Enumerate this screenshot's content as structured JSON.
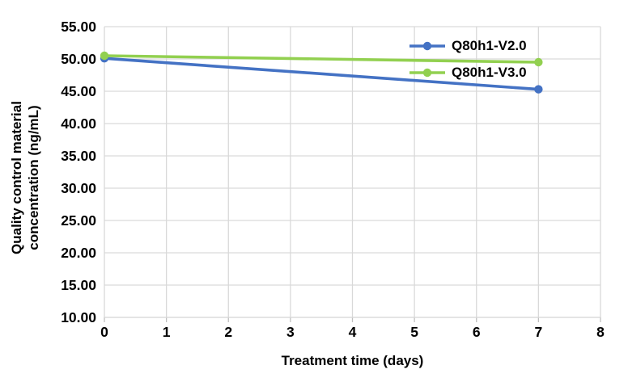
{
  "chart_data": {
    "type": "line",
    "title": "",
    "xlabel": "Treatment time (days)",
    "ylabel": "Quality control material concentration (ng/mL)",
    "ylabel_lines": [
      "Quality control material",
      "concentration (ng/mL)"
    ],
    "x": [
      0,
      7
    ],
    "series": [
      {
        "name": "Q80h1-V2.0",
        "color": "#4472C4",
        "values": [
          50.1,
          45.3
        ]
      },
      {
        "name": "Q80h1-V3.0",
        "color": "#92D050",
        "values": [
          50.5,
          49.5
        ]
      }
    ],
    "xlim": [
      0,
      8
    ],
    "ylim": [
      10,
      55
    ],
    "x_ticks": [
      {
        "value": 0,
        "label": "0"
      },
      {
        "value": 1,
        "label": "1"
      },
      {
        "value": 2,
        "label": "2"
      },
      {
        "value": 3,
        "label": "3"
      },
      {
        "value": 4,
        "label": "4"
      },
      {
        "value": 5,
        "label": "5"
      },
      {
        "value": 6,
        "label": "6"
      },
      {
        "value": 7,
        "label": "7"
      },
      {
        "value": 8,
        "label": "8"
      }
    ],
    "y_ticks": [
      {
        "value": 55,
        "label": "55.00"
      },
      {
        "value": 50,
        "label": "50.00"
      },
      {
        "value": 45,
        "label": "45.00"
      },
      {
        "value": 40,
        "label": "40.00"
      },
      {
        "value": 35,
        "label": "35.00"
      },
      {
        "value": 30,
        "label": "30.00"
      },
      {
        "value": 25,
        "label": "25.00"
      },
      {
        "value": 20,
        "label": "20.00"
      },
      {
        "value": 15,
        "label": "15.00"
      },
      {
        "value": 10,
        "label": "10.00"
      }
    ],
    "grid": true,
    "legend_position": "inside-top-right",
    "colors": {
      "gridline": "#D9D9D9",
      "axis_line": "#D9D9D9",
      "tick_mark": "#BFBFBF",
      "text": "#000000",
      "background": "#FFFFFF"
    }
  }
}
